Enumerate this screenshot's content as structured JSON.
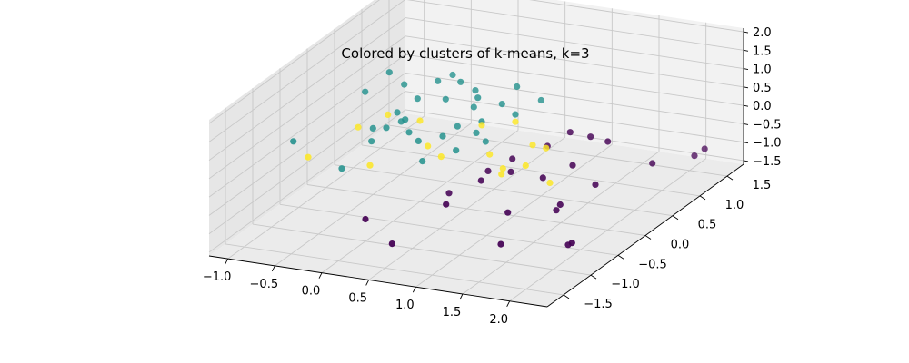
{
  "chart_data": {
    "type": "scatter",
    "projection": "3d",
    "title": "Colored by clusters of k-means, k=3",
    "xlabel": "",
    "ylabel": "",
    "zlabel": "",
    "x_ticks": [
      "−1.0",
      "−0.5",
      "0.0",
      "0.5",
      "1.0",
      "1.5",
      "2.0"
    ],
    "y_ticks": [
      "−1.5",
      "−1.0",
      "−0.5",
      "0.0",
      "0.5",
      "1.0",
      "1.5"
    ],
    "z_ticks": [
      "−1.5",
      "−1.0",
      "−0.5",
      "0.0",
      "0.5",
      "1.0",
      "1.5",
      "2.0"
    ],
    "xlim": [
      -1.2,
      2.4
    ],
    "ylim": [
      -1.8,
      1.8
    ],
    "zlim": [
      -1.6,
      2.1
    ],
    "grid": true,
    "legend": false,
    "colors": {
      "cluster_0": "#440154",
      "cluster_1": "#21908c",
      "cluster_2": "#fde725",
      "pane_back": "#f2f2f2",
      "pane_side": "#e6e6e6",
      "pane_floor": "#ebebeb",
      "grid": "#c8c8c8"
    },
    "series": [
      {
        "cluster": 1,
        "color": "#21908c",
        "points": [
          [
            -1.0,
            -0.6,
            0.3
          ],
          [
            -0.7,
            0.2,
            0.9
          ],
          [
            -0.5,
            0.3,
            1.4
          ],
          [
            -0.4,
            0.4,
            1.0
          ],
          [
            -0.3,
            -0.1,
            0.4
          ],
          [
            -0.2,
            0.3,
            0.8
          ],
          [
            -0.1,
            0.5,
            1.1
          ],
          [
            0.0,
            0.6,
            1.2
          ],
          [
            -0.6,
            -0.4,
            -0.5
          ],
          [
            -0.4,
            -0.2,
            0.1
          ],
          [
            -0.2,
            0.0,
            0.5
          ],
          [
            -0.1,
            -0.1,
            0.7
          ],
          [
            0.1,
            0.3,
            0.9
          ],
          [
            0.2,
            0.4,
            1.3
          ],
          [
            0.3,
            0.5,
            1.0
          ],
          [
            0.1,
            -0.2,
            0.3
          ],
          [
            0.4,
            0.0,
            0.6
          ],
          [
            0.2,
            -0.3,
            -0.1
          ],
          [
            0.5,
            0.2,
            1.2
          ],
          [
            0.6,
            0.1,
            0.7
          ],
          [
            0.3,
            -0.1,
            0.4
          ],
          [
            0.7,
            0.3,
            1.0
          ],
          [
            0.5,
            -0.2,
            0.2
          ],
          [
            0.8,
            0.4,
            1.4
          ],
          [
            0.6,
            0.0,
            0.5
          ],
          [
            0.9,
            0.2,
            0.9
          ],
          [
            -0.3,
            0.1,
            0.6
          ],
          [
            0.0,
            -0.2,
            0.5
          ],
          [
            0.7,
            0.0,
            0.3
          ],
          [
            1.0,
            0.5,
            1.0
          ],
          [
            0.4,
            0.3,
            0.8
          ],
          [
            -0.5,
            0.0,
            0.2
          ]
        ]
      },
      {
        "cluster": 2,
        "color": "#fde725",
        "points": [
          [
            -0.9,
            -0.5,
            -0.2
          ],
          [
            -0.6,
            -0.1,
            0.3
          ],
          [
            -0.4,
            0.1,
            0.5
          ],
          [
            -0.3,
            -0.4,
            -0.3
          ],
          [
            0.0,
            0.0,
            0.6
          ],
          [
            0.2,
            -0.2,
            0.2
          ],
          [
            0.4,
            -0.3,
            0.1
          ],
          [
            0.6,
            0.1,
            0.6
          ],
          [
            0.8,
            -0.1,
            0.1
          ],
          [
            1.0,
            -0.2,
            -0.1
          ],
          [
            1.2,
            0.0,
            0.4
          ],
          [
            1.3,
            -0.3,
            0.2
          ],
          [
            1.4,
            -0.1,
            0.5
          ],
          [
            1.5,
            -0.2,
            -0.3
          ],
          [
            1.1,
            -0.4,
            0.0
          ],
          [
            0.9,
            0.2,
            0.7
          ]
        ]
      },
      {
        "cluster": 0,
        "color": "#440154",
        "points": [
          [
            0.0,
            -1.0,
            -1.0
          ],
          [
            0.4,
            -1.2,
            -1.3
          ],
          [
            0.8,
            -0.9,
            -0.4
          ],
          [
            1.0,
            -0.6,
            0.0
          ],
          [
            1.2,
            -0.4,
            0.1
          ],
          [
            1.4,
            -0.8,
            -0.5
          ],
          [
            1.6,
            -0.5,
            0.2
          ],
          [
            1.8,
            -0.3,
            0.4
          ],
          [
            1.5,
            -1.1,
            -1.0
          ],
          [
            1.9,
            -0.7,
            -0.2
          ],
          [
            2.1,
            -0.4,
            0.1
          ],
          [
            2.2,
            -1.0,
            -0.8
          ],
          [
            2.0,
            0.0,
            0.8
          ],
          [
            1.7,
            0.2,
            0.6
          ],
          [
            1.3,
            0.1,
            0.3
          ],
          [
            1.1,
            -0.2,
            0.2
          ],
          [
            2.3,
            0.3,
            0.0
          ],
          [
            2.4,
            0.9,
            -0.4
          ],
          [
            2.45,
            1.0,
            -0.3
          ],
          [
            0.6,
            -0.5,
            -0.6
          ],
          [
            0.9,
            -0.3,
            -0.1
          ],
          [
            1.6,
            0.0,
            0.9
          ],
          [
            2.1,
            -0.9,
            -1.0
          ],
          [
            1.8,
            -0.6,
            -0.5
          ]
        ]
      }
    ]
  }
}
